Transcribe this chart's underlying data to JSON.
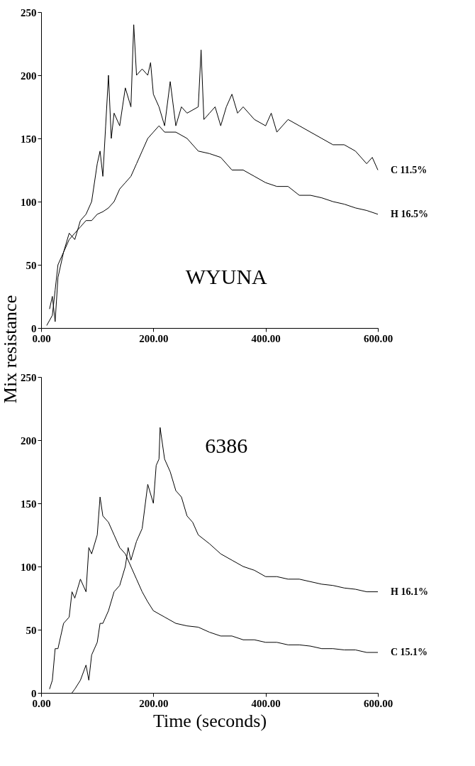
{
  "chart_data": [
    {
      "type": "line",
      "ylabel": "Mix resistance",
      "annotations": [
        "WYUNA"
      ],
      "xlim": [
        0,
        600
      ],
      "ylim": [
        0,
        250
      ],
      "xticks": [
        {
          "value": 0,
          "label": "0.00"
        },
        {
          "value": 200,
          "label": "200.00"
        },
        {
          "value": 400,
          "label": "400.00"
        },
        {
          "value": 600,
          "label": "600.00"
        }
      ],
      "yticks": [
        0,
        50,
        100,
        150,
        200,
        250
      ],
      "grid": false,
      "legend": false,
      "marker": "none",
      "line_style": "solid",
      "series": [
        {
          "name": "C 11.5%",
          "color": "#000000",
          "x": [
            15,
            20,
            25,
            30,
            40,
            50,
            60,
            70,
            80,
            90,
            100,
            105,
            110,
            115,
            120,
            125,
            130,
            140,
            150,
            160,
            165,
            170,
            180,
            190,
            195,
            200,
            210,
            220,
            230,
            240,
            250,
            260,
            280,
            285,
            290,
            300,
            310,
            320,
            330,
            340,
            350,
            360,
            380,
            400,
            410,
            420,
            440,
            460,
            480,
            500,
            520,
            540,
            560,
            580,
            590,
            600
          ],
          "values": [
            15,
            25,
            5,
            40,
            60,
            75,
            70,
            85,
            90,
            100,
            130,
            140,
            120,
            160,
            200,
            150,
            170,
            160,
            190,
            175,
            240,
            200,
            205,
            200,
            210,
            185,
            175,
            160,
            195,
            160,
            175,
            170,
            175,
            220,
            165,
            170,
            175,
            160,
            175,
            185,
            170,
            175,
            165,
            160,
            170,
            155,
            165,
            160,
            155,
            150,
            145,
            145,
            140,
            130,
            135,
            125
          ]
        },
        {
          "name": "H 16.5%",
          "color": "#000000",
          "x": [
            10,
            20,
            25,
            30,
            40,
            50,
            60,
            70,
            80,
            90,
            100,
            110,
            120,
            130,
            140,
            150,
            160,
            170,
            180,
            190,
            200,
            210,
            220,
            240,
            260,
            280,
            300,
            320,
            340,
            360,
            380,
            400,
            420,
            440,
            460,
            480,
            500,
            520,
            540,
            560,
            580,
            600
          ],
          "values": [
            2,
            10,
            30,
            50,
            60,
            70,
            75,
            80,
            85,
            85,
            90,
            92,
            95,
            100,
            110,
            115,
            120,
            130,
            140,
            150,
            155,
            160,
            155,
            155,
            150,
            140,
            138,
            135,
            125,
            125,
            120,
            115,
            112,
            112,
            105,
            105,
            103,
            100,
            98,
            95,
            93,
            90
          ]
        }
      ]
    },
    {
      "type": "line",
      "xlabel": "Time    (seconds)",
      "annotations": [
        "6386"
      ],
      "xlim": [
        0,
        600
      ],
      "ylim": [
        0,
        250
      ],
      "xticks": [
        {
          "value": 0,
          "label": "0.00"
        },
        {
          "value": 200,
          "label": "200.00"
        },
        {
          "value": 400,
          "label": "400.00"
        },
        {
          "value": 600,
          "label": "600.00"
        }
      ],
      "yticks": [
        0,
        50,
        100,
        150,
        200,
        250
      ],
      "grid": false,
      "legend": false,
      "marker": "none",
      "line_style": "solid",
      "series": [
        {
          "name": "H 16.1%",
          "color": "#000000",
          "x": [
            55,
            60,
            70,
            80,
            85,
            90,
            100,
            105,
            110,
            120,
            130,
            140,
            150,
            155,
            160,
            170,
            180,
            190,
            200,
            205,
            210,
            212,
            220,
            230,
            240,
            250,
            260,
            270,
            280,
            300,
            320,
            340,
            360,
            380,
            400,
            420,
            440,
            460,
            480,
            500,
            520,
            540,
            560,
            580,
            600
          ],
          "values": [
            0,
            3,
            10,
            22,
            10,
            30,
            40,
            55,
            55,
            65,
            80,
            85,
            100,
            115,
            105,
            120,
            130,
            165,
            150,
            180,
            185,
            210,
            185,
            175,
            160,
            155,
            140,
            135,
            125,
            118,
            110,
            105,
            100,
            97,
            92,
            92,
            90,
            90,
            88,
            86,
            85,
            83,
            82,
            80,
            80
          ]
        },
        {
          "name": "C 15.1%",
          "color": "#000000",
          "x": [
            15,
            20,
            25,
            30,
            35,
            40,
            50,
            55,
            60,
            70,
            80,
            85,
            90,
            100,
            105,
            110,
            120,
            130,
            140,
            150,
            160,
            170,
            180,
            190,
            200,
            220,
            240,
            260,
            280,
            300,
            320,
            340,
            360,
            380,
            400,
            420,
            440,
            460,
            480,
            500,
            520,
            540,
            560,
            580,
            600
          ],
          "values": [
            3,
            10,
            35,
            35,
            45,
            55,
            60,
            80,
            75,
            90,
            80,
            115,
            110,
            125,
            155,
            140,
            135,
            125,
            115,
            110,
            100,
            90,
            80,
            72,
            65,
            60,
            55,
            53,
            52,
            48,
            45,
            45,
            42,
            42,
            40,
            40,
            38,
            38,
            37,
            35,
            35,
            34,
            34,
            32,
            32
          ]
        }
      ]
    }
  ]
}
